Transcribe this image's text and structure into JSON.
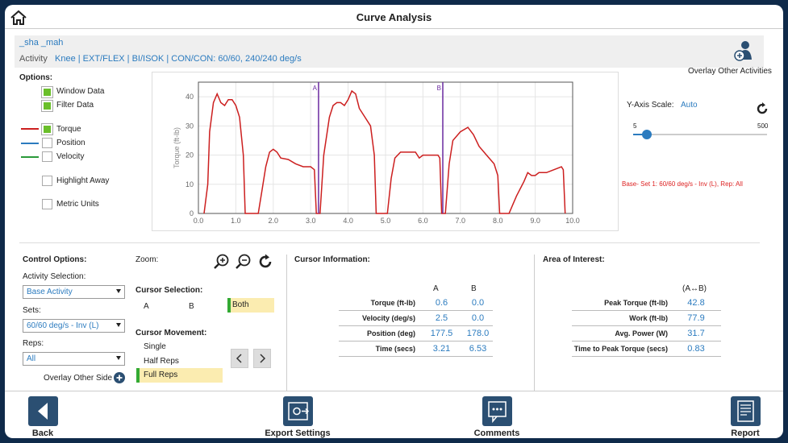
{
  "header": {
    "title": "Curve Analysis"
  },
  "info": {
    "name": "_sha _mah",
    "activity_label": "Activity",
    "activity_value": "Knee | EXT/FLEX | BI/ISOK | CON/CON: 60/60, 240/240 deg/s"
  },
  "overlay_activities": "Overlay Other Activities",
  "options": {
    "title": "Options:",
    "window_data": "Window Data",
    "filter_data": "Filter Data",
    "torque": "Torque",
    "position": "Position",
    "velocity": "Velocity",
    "highlight_away": "Highlight Away",
    "metric_units": "Metric Units"
  },
  "colors": {
    "torque": "#cc1f1f",
    "position": "#2b7bbf",
    "velocity": "#2a9a3a",
    "cursor": "#6a2aa0",
    "accent": "#6abf2a"
  },
  "chart_data": {
    "type": "line",
    "ylabel": "Torque (ft-lb)",
    "xlim": [
      0,
      10
    ],
    "ylim": [
      0,
      45
    ],
    "xticks": [
      "0.0",
      "1.0",
      "2.0",
      "3.0",
      "4.0",
      "5.0",
      "6.0",
      "7.0",
      "8.0",
      "9.0",
      "10.0"
    ],
    "yticks": [
      "0",
      "10",
      "20",
      "30",
      "40"
    ],
    "cursors": [
      {
        "name": "A",
        "x": 3.21
      },
      {
        "name": "B",
        "x": 6.53
      }
    ],
    "series": [
      {
        "values": [
          [
            0.15,
            0
          ],
          [
            0.25,
            10
          ],
          [
            0.3,
            28
          ],
          [
            0.4,
            38
          ],
          [
            0.5,
            41
          ],
          [
            0.6,
            38
          ],
          [
            0.7,
            37
          ],
          [
            0.8,
            39
          ],
          [
            0.9,
            39
          ],
          [
            1.0,
            37
          ],
          [
            1.1,
            33
          ],
          [
            1.2,
            20
          ],
          [
            1.25,
            0
          ],
          [
            1.6,
            0
          ],
          [
            1.7,
            8
          ],
          [
            1.8,
            16
          ],
          [
            1.9,
            21
          ],
          [
            2.0,
            22
          ],
          [
            2.1,
            21
          ],
          [
            2.2,
            19
          ],
          [
            2.4,
            18.5
          ],
          [
            2.6,
            17
          ],
          [
            2.8,
            16
          ],
          [
            3.0,
            16
          ],
          [
            3.1,
            15
          ],
          [
            3.15,
            0
          ],
          [
            3.25,
            0
          ],
          [
            3.35,
            20
          ],
          [
            3.5,
            33
          ],
          [
            3.6,
            37
          ],
          [
            3.7,
            38
          ],
          [
            3.8,
            38
          ],
          [
            3.9,
            37
          ],
          [
            4.0,
            39
          ],
          [
            4.1,
            42
          ],
          [
            4.2,
            41
          ],
          [
            4.3,
            36
          ],
          [
            4.45,
            33
          ],
          [
            4.6,
            30
          ],
          [
            4.7,
            20
          ],
          [
            4.75,
            0
          ],
          [
            5.05,
            0
          ],
          [
            5.15,
            12
          ],
          [
            5.25,
            19
          ],
          [
            5.4,
            21
          ],
          [
            5.6,
            21
          ],
          [
            5.8,
            21
          ],
          [
            5.9,
            19
          ],
          [
            6.0,
            20
          ],
          [
            6.2,
            20
          ],
          [
            6.3,
            20
          ],
          [
            6.4,
            20
          ],
          [
            6.45,
            19
          ],
          [
            6.5,
            0
          ],
          [
            6.6,
            0
          ],
          [
            6.7,
            17
          ],
          [
            6.8,
            25
          ],
          [
            7.0,
            28
          ],
          [
            7.2,
            29.5
          ],
          [
            7.35,
            27
          ],
          [
            7.5,
            23
          ],
          [
            7.7,
            20
          ],
          [
            7.9,
            17
          ],
          [
            8.0,
            13
          ],
          [
            8.05,
            0
          ],
          [
            8.3,
            0
          ],
          [
            8.5,
            6
          ],
          [
            8.7,
            11
          ],
          [
            8.8,
            14
          ],
          [
            8.9,
            13
          ],
          [
            9.0,
            13
          ],
          [
            9.1,
            14
          ],
          [
            9.3,
            14
          ],
          [
            9.5,
            15
          ],
          [
            9.7,
            16
          ],
          [
            9.75,
            15
          ],
          [
            9.8,
            0
          ]
        ]
      }
    ]
  },
  "yaxis": {
    "label": "Y-Axis Scale:",
    "value": "Auto",
    "min": "5",
    "max": "500",
    "slider": 0.04
  },
  "base_note": "Base- Set 1: 60/60 deg/s - Inv (L), Rep: All",
  "control": {
    "title": "Control Options:",
    "activity_sel_label": "Activity Selection:",
    "activity_sel": "Base Activity",
    "sets_label": "Sets:",
    "sets": "60/60 deg/s - Inv (L)",
    "reps_label": "Reps:",
    "reps": "All",
    "overlay_side": "Overlay Other Side"
  },
  "zoom": {
    "label": "Zoom:"
  },
  "cursor_selection": {
    "title": "Cursor Selection:",
    "a": "A",
    "b": "B",
    "both": "Both"
  },
  "cursor_movement": {
    "title": "Cursor Movement:",
    "single": "Single",
    "half": "Half Reps",
    "full": "Full Reps"
  },
  "cursor_info": {
    "title": "Cursor Information:",
    "col_a": "A",
    "col_b": "B",
    "rows": [
      {
        "label": "Torque (ft-lb)",
        "a": "0.6",
        "b": "0.0"
      },
      {
        "label": "Velocity (deg/s)",
        "a": "2.5",
        "b": "0.0"
      },
      {
        "label": "Position (deg)",
        "a": "177.5",
        "b": "178.0"
      },
      {
        "label": "Time (secs)",
        "a": "3.21",
        "b": "6.53"
      }
    ]
  },
  "aoi": {
    "title": "Area of Interest:",
    "col": "(A↔B)",
    "rows": [
      {
        "label": "Peak Torque (ft-lb)",
        "v": "42.8"
      },
      {
        "label": "Work (ft-lb)",
        "v": "77.9"
      },
      {
        "label": "Avg. Power (W)",
        "v": "31.7"
      },
      {
        "label": "Time to Peak Torque (secs)",
        "v": "0.83"
      }
    ]
  },
  "bottom": {
    "back": "Back",
    "export": "Export Settings",
    "comments": "Comments",
    "report": "Report"
  }
}
